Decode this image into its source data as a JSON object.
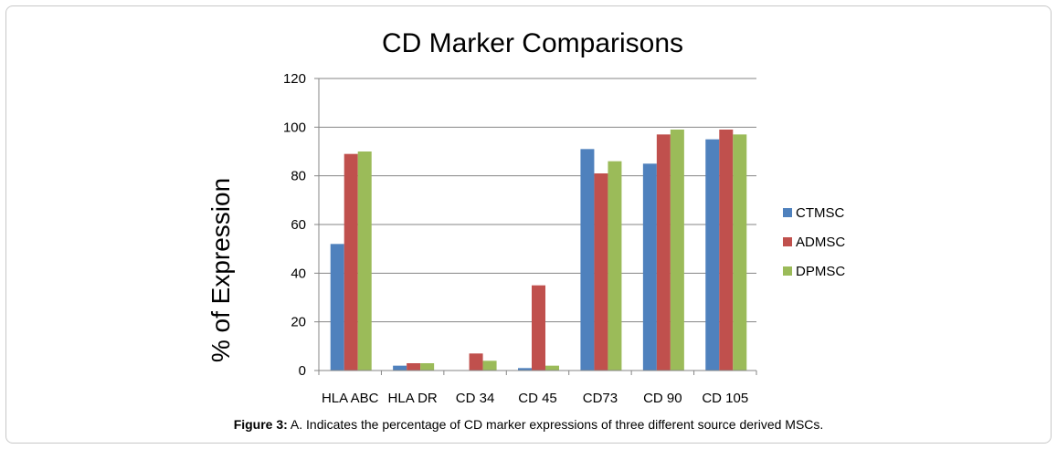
{
  "chart_data": {
    "type": "bar",
    "title": "CD Marker Comparisons",
    "xlabel": "",
    "ylabel": "% of Expression",
    "ylim": [
      0,
      120
    ],
    "yticks": [
      0,
      20,
      40,
      60,
      80,
      100,
      120
    ],
    "grid": true,
    "legend_position": "right",
    "categories": [
      "HLA ABC",
      "HLA DR",
      "CD 34",
      "CD 45",
      "CD73",
      "CD 90",
      "CD 105"
    ],
    "series": [
      {
        "name": "CTMSC",
        "color": "#4f81bd",
        "values": [
          52,
          2,
          0,
          1,
          91,
          85,
          95
        ]
      },
      {
        "name": "ADMSC",
        "color": "#c0504d",
        "values": [
          89,
          3,
          7,
          35,
          81,
          97,
          99
        ]
      },
      {
        "name": "DPMSC",
        "color": "#9bbb59",
        "values": [
          90,
          3,
          4,
          2,
          86,
          99,
          97
        ]
      }
    ]
  },
  "caption": {
    "label": "Figure 3:",
    "text": " A. Indicates the percentage of CD marker expressions of three different source derived MSCs."
  }
}
